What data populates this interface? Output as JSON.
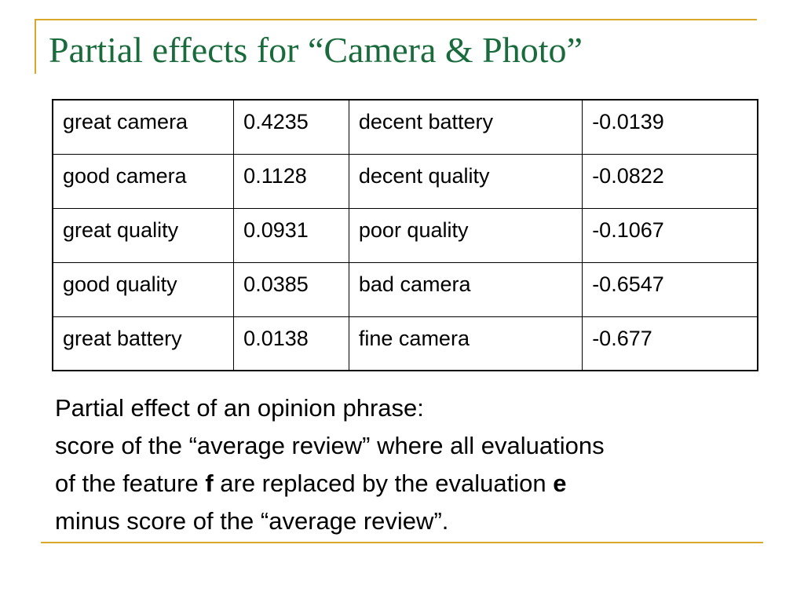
{
  "slide": {
    "title": "Partial effects for “Camera & Photo”",
    "accent_color": "#d9a72a",
    "title_color": "#1a6b3c"
  },
  "table": {
    "rows": [
      {
        "phrase_pos": "great camera",
        "value_pos": "0.4235",
        "phrase_neg": "decent battery",
        "value_neg": "-0.0139"
      },
      {
        "phrase_pos": "good camera",
        "value_pos": "0.1128",
        "phrase_neg": "decent quality",
        "value_neg": "-0.0822"
      },
      {
        "phrase_pos": "great quality",
        "value_pos": "0.0931",
        "phrase_neg": "poor quality",
        "value_neg": "-0.1067"
      },
      {
        "phrase_pos": "good quality",
        "value_pos": "0.0385",
        "phrase_neg": "bad camera",
        "value_neg": "-0.6547"
      },
      {
        "phrase_pos": "great battery",
        "value_pos": "0.0138",
        "phrase_neg": "fine camera",
        "value_neg": "-0.677"
      }
    ]
  },
  "description": {
    "line1": "Partial effect of an opinion phrase:",
    "line2": "score of the “average review” where all evaluations",
    "line3_a": "of the feature ",
    "line3_f": "f",
    "line3_b": " are replaced by the evaluation ",
    "line3_e": "e",
    "line4": "minus score of the “average review”."
  }
}
